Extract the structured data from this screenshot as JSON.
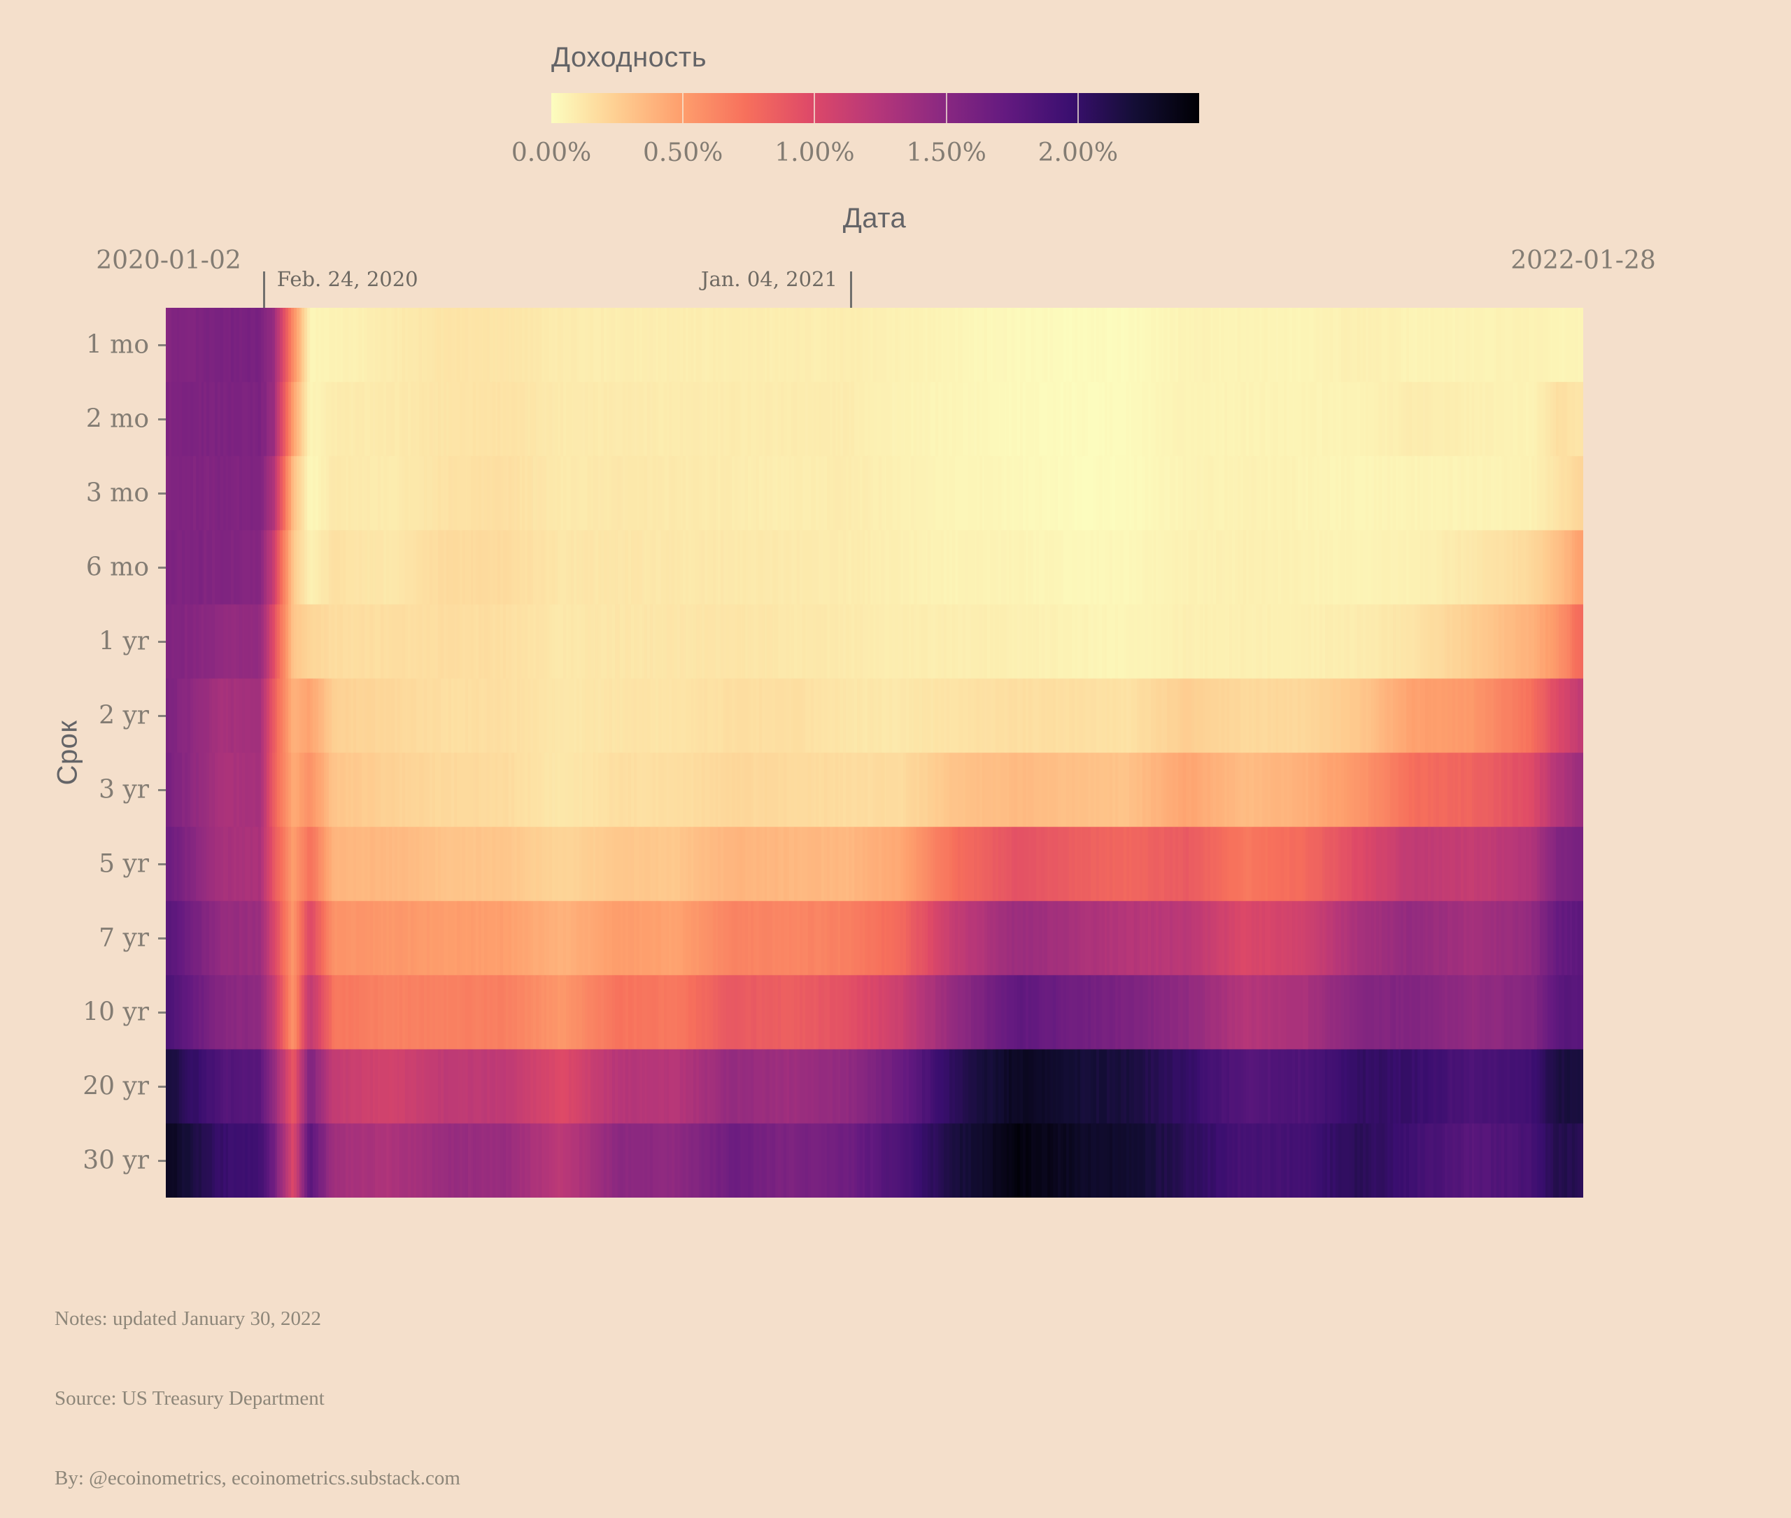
{
  "colorbar": {
    "title": "Доходность",
    "tick_labels": [
      "0.00%",
      "0.50%",
      "1.00%",
      "1.50%",
      "2.00%"
    ],
    "tick_values": [
      0,
      0.5,
      1.0,
      1.5,
      2.0
    ],
    "min_value": 0,
    "max_value": 2.46,
    "colorscale": "magma reversed (light = low yield, dark = high yield)"
  },
  "x_axis": {
    "title": "Дата",
    "start_label": "2020-01-02",
    "end_label": "2022-01-28"
  },
  "y_axis": {
    "title": "Срок"
  },
  "annotations": [
    {
      "label": "Feb. 24, 2020",
      "t": 0.0695,
      "text_side": "right"
    },
    {
      "label": "Jan. 04, 2021",
      "t": 0.4837,
      "text_side": "left"
    }
  ],
  "notes": {
    "line1": "Notes: updated January 30, 2022",
    "line2": "Source: US Treasury Department",
    "line3": "By: @ecoinometrics, ecoinometrics.substack.com"
  },
  "colors": {
    "background": "#f4dfcb",
    "axis_title_text": "#646467",
    "tick_text": "#837c73",
    "annotation_text": "#6e6962",
    "annotation_line": "#71706d",
    "notes_text": "#8d8679"
  },
  "chart_data": {
    "type": "heatmap",
    "title": "Доходность",
    "xlabel": "Дата",
    "ylabel": "Срок",
    "unit": "%",
    "zmin": 0,
    "zmax": 2.46,
    "x_range": [
      "2020-01-02",
      "2022-01-28"
    ],
    "maturities": [
      "1 mo",
      "2 mo",
      "3 mo",
      "6 mo",
      "1 yr",
      "2 yr",
      "3 yr",
      "5 yr",
      "7 yr",
      "10 yr",
      "20 yr",
      "30 yr"
    ],
    "columns": [
      {
        "date": "2020-01-02",
        "t": 0.0,
        "yields": [
          1.53,
          1.55,
          1.54,
          1.57,
          1.56,
          1.58,
          1.59,
          1.67,
          1.79,
          1.88,
          2.19,
          2.33
        ]
      },
      {
        "date": "2020-01-31",
        "t": 0.038,
        "yields": [
          1.58,
          1.57,
          1.55,
          1.54,
          1.45,
          1.33,
          1.3,
          1.32,
          1.43,
          1.51,
          1.83,
          1.99
        ]
      },
      {
        "date": "2020-02-21",
        "t": 0.066,
        "yields": [
          1.6,
          1.58,
          1.55,
          1.51,
          1.43,
          1.34,
          1.33,
          1.3,
          1.39,
          1.46,
          1.77,
          1.91
        ]
      },
      {
        "date": "2020-02-28",
        "t": 0.075,
        "yields": [
          1.41,
          1.39,
          1.27,
          1.11,
          0.97,
          0.86,
          0.85,
          0.89,
          1.03,
          1.13,
          1.46,
          1.65
        ]
      },
      {
        "date": "2020-03-09",
        "t": 0.089,
        "yields": [
          0.57,
          0.47,
          0.33,
          0.27,
          0.29,
          0.38,
          0.43,
          0.49,
          0.52,
          0.54,
          0.87,
          0.99
        ]
      },
      {
        "date": "2020-03-18",
        "t": 0.101,
        "yields": [
          0.04,
          0.04,
          0.02,
          0.06,
          0.21,
          0.47,
          0.56,
          0.73,
          0.99,
          1.18,
          1.56,
          1.77
        ]
      },
      {
        "date": "2020-03-31",
        "t": 0.118,
        "yields": [
          0.05,
          0.09,
          0.11,
          0.15,
          0.17,
          0.23,
          0.29,
          0.37,
          0.55,
          0.7,
          1.15,
          1.35
        ]
      },
      {
        "date": "2020-04-30",
        "t": 0.157,
        "yields": [
          0.09,
          0.1,
          0.09,
          0.11,
          0.16,
          0.2,
          0.23,
          0.36,
          0.53,
          0.64,
          1.05,
          1.28
        ]
      },
      {
        "date": "2020-05-29",
        "t": 0.196,
        "yields": [
          0.13,
          0.13,
          0.14,
          0.18,
          0.17,
          0.16,
          0.19,
          0.3,
          0.5,
          0.65,
          1.18,
          1.41
        ]
      },
      {
        "date": "2020-06-30",
        "t": 0.238,
        "yields": [
          0.13,
          0.14,
          0.16,
          0.18,
          0.16,
          0.16,
          0.18,
          0.29,
          0.49,
          0.66,
          1.18,
          1.41
        ]
      },
      {
        "date": "2020-07-31",
        "t": 0.279,
        "yields": [
          0.09,
          0.1,
          0.1,
          0.12,
          0.11,
          0.11,
          0.11,
          0.21,
          0.39,
          0.53,
          0.98,
          1.19
        ]
      },
      {
        "date": "2020-08-31",
        "t": 0.32,
        "yields": [
          0.08,
          0.1,
          0.11,
          0.12,
          0.12,
          0.13,
          0.16,
          0.28,
          0.5,
          0.72,
          1.24,
          1.49
        ]
      },
      {
        "date": "2020-09-30",
        "t": 0.36,
        "yields": [
          0.08,
          0.09,
          0.1,
          0.11,
          0.12,
          0.13,
          0.16,
          0.28,
          0.47,
          0.69,
          1.23,
          1.46
        ]
      },
      {
        "date": "2020-10-30",
        "t": 0.399,
        "yields": [
          0.08,
          0.09,
          0.09,
          0.11,
          0.13,
          0.16,
          0.2,
          0.38,
          0.64,
          0.88,
          1.43,
          1.66
        ]
      },
      {
        "date": "2020-11-30",
        "t": 0.44,
        "yields": [
          0.08,
          0.09,
          0.08,
          0.1,
          0.11,
          0.16,
          0.19,
          0.36,
          0.62,
          0.84,
          1.37,
          1.57
        ]
      },
      {
        "date": "2020-12-31",
        "t": 0.481,
        "yields": [
          0.08,
          0.09,
          0.09,
          0.09,
          0.1,
          0.12,
          0.17,
          0.36,
          0.65,
          0.93,
          1.45,
          1.65
        ]
      },
      {
        "date": "2021-01-29",
        "t": 0.52,
        "yields": [
          0.06,
          0.05,
          0.06,
          0.07,
          0.08,
          0.11,
          0.18,
          0.45,
          0.79,
          1.11,
          1.68,
          1.87
        ]
      },
      {
        "date": "2021-02-26",
        "t": 0.557,
        "yields": [
          0.04,
          0.04,
          0.04,
          0.05,
          0.08,
          0.14,
          0.3,
          0.75,
          1.15,
          1.44,
          2.08,
          2.17
        ]
      },
      {
        "date": "2021-03-31",
        "t": 0.601,
        "yields": [
          0.02,
          0.02,
          0.03,
          0.05,
          0.07,
          0.16,
          0.35,
          0.92,
          1.4,
          1.74,
          2.31,
          2.41
        ]
      },
      {
        "date": "2021-04-30",
        "t": 0.64,
        "yields": [
          0.01,
          0.01,
          0.01,
          0.03,
          0.05,
          0.16,
          0.32,
          0.85,
          1.32,
          1.65,
          2.21,
          2.3
        ]
      },
      {
        "date": "2021-05-28",
        "t": 0.677,
        "yields": [
          0.01,
          0.01,
          0.01,
          0.03,
          0.04,
          0.14,
          0.3,
          0.79,
          1.24,
          1.58,
          2.18,
          2.26
        ]
      },
      {
        "date": "2021-06-30",
        "t": 0.721,
        "yields": [
          0.05,
          0.05,
          0.05,
          0.06,
          0.07,
          0.25,
          0.46,
          0.87,
          1.21,
          1.45,
          2.0,
          2.06
        ]
      },
      {
        "date": "2021-07-30",
        "t": 0.761,
        "yields": [
          0.05,
          0.05,
          0.06,
          0.07,
          0.07,
          0.19,
          0.34,
          0.69,
          1.0,
          1.24,
          1.8,
          1.89
        ]
      },
      {
        "date": "2021-08-31",
        "t": 0.803,
        "yields": [
          0.04,
          0.05,
          0.05,
          0.06,
          0.07,
          0.2,
          0.4,
          0.77,
          1.07,
          1.3,
          1.85,
          1.92
        ]
      },
      {
        "date": "2021-09-30",
        "t": 0.843,
        "yields": [
          0.07,
          0.05,
          0.04,
          0.05,
          0.09,
          0.28,
          0.53,
          0.98,
          1.32,
          1.52,
          2.02,
          2.08
        ]
      },
      {
        "date": "2021-10-29",
        "t": 0.881,
        "yields": [
          0.05,
          0.09,
          0.05,
          0.06,
          0.13,
          0.48,
          0.75,
          1.18,
          1.44,
          1.55,
          1.98,
          1.93
        ]
      },
      {
        "date": "2021-11-30",
        "t": 0.923,
        "yields": [
          0.05,
          0.07,
          0.05,
          0.11,
          0.25,
          0.52,
          0.81,
          1.14,
          1.33,
          1.43,
          1.85,
          1.78
        ]
      },
      {
        "date": "2021-12-31",
        "t": 0.964,
        "yields": [
          0.06,
          0.05,
          0.06,
          0.19,
          0.39,
          0.73,
          0.97,
          1.26,
          1.44,
          1.52,
          1.94,
          1.9
        ]
      },
      {
        "date": "2022-01-14",
        "t": 0.983,
        "yields": [
          0.04,
          0.16,
          0.13,
          0.31,
          0.54,
          0.99,
          1.25,
          1.55,
          1.71,
          1.78,
          2.17,
          2.12
        ]
      },
      {
        "date": "2022-01-28",
        "t": 1.0,
        "yields": [
          0.05,
          0.12,
          0.22,
          0.49,
          0.78,
          1.17,
          1.39,
          1.62,
          1.75,
          1.78,
          2.17,
          2.08
        ]
      }
    ]
  }
}
